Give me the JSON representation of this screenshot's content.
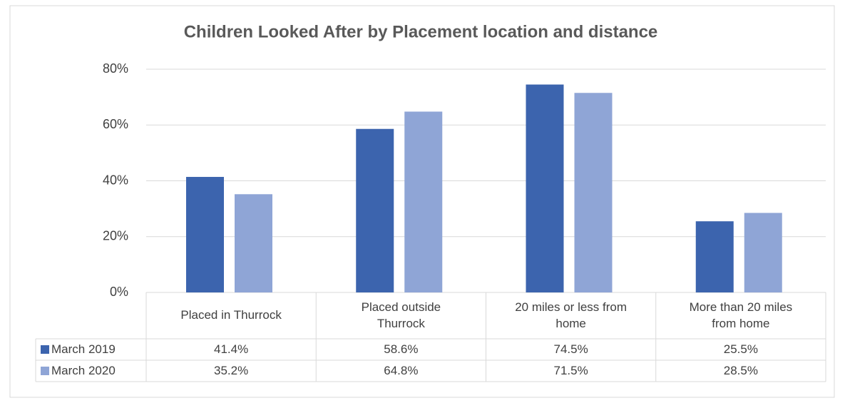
{
  "chart_data": {
    "type": "bar",
    "title": "Children Looked After by Placement location and distance",
    "categories": [
      "Placed in Thurrock",
      "Placed outside Thurrock",
      "20 miles or less from home",
      "More than 20 miles from home"
    ],
    "series": [
      {
        "name": "March 2019",
        "color": "#3c64ae",
        "values": [
          41.4,
          58.6,
          74.5,
          25.5
        ],
        "value_labels": [
          "41.4%",
          "58.6%",
          "74.5%",
          "25.5%"
        ]
      },
      {
        "name": "March 2020",
        "color": "#8fa5d6",
        "values": [
          35.2,
          64.8,
          71.5,
          28.5
        ],
        "value_labels": [
          "35.2%",
          "64.8%",
          "71.5%",
          "28.5%"
        ]
      }
    ],
    "ylim": [
      0,
      80
    ],
    "yticks": [
      {
        "value": 0,
        "label": "0%"
      },
      {
        "value": 20,
        "label": "20%"
      },
      {
        "value": 40,
        "label": "40%"
      },
      {
        "value": 60,
        "label": "60%"
      },
      {
        "value": 80,
        "label": "80%"
      }
    ],
    "grid": true
  }
}
